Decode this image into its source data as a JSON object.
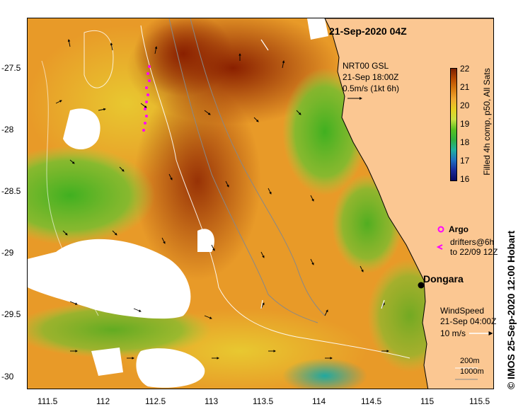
{
  "title": "21-Sep-2020 04Z",
  "currents": {
    "product": "NRT00 GSL",
    "time": "21-Sep 18:00Z",
    "scale_label": "0.5m/s (1kt 6h)"
  },
  "colorbar": {
    "label": "Filled 4h comp, p50, All Sats",
    "ticks": [
      "22",
      "21",
      "20",
      "19",
      "18",
      "17",
      "16"
    ],
    "colors": [
      "#7a1f00",
      "#b84a00",
      "#d87a10",
      "#f0a830",
      "#e6d020",
      "#c8e040",
      "#58c020",
      "#30b040",
      "#20b0a0",
      "#2070c0",
      "#1a2a9a",
      "#0a0a60"
    ]
  },
  "legend": {
    "argo_label": "Argo",
    "drifters_line1": "drifters@6h",
    "drifters_line2": "to 22/09 12Z",
    "argo_color": "#ff00ff"
  },
  "wind": {
    "label": "WindSpeed",
    "time": "21-Sep 04:00Z",
    "scale_label": "10 m/s"
  },
  "isobaths": {
    "line1": "200m",
    "line2": "1000m"
  },
  "place": {
    "name": "Dongara"
  },
  "credit": "© IMOS 25-Sep-2020 12:00 Hobart",
  "axes": {
    "lat_ticks": [
      "-27.5",
      "-28",
      "-28.5",
      "-29",
      "-29.5",
      "-30"
    ],
    "lon_ticks": [
      "111.5",
      "112",
      "112.5",
      "113",
      "113.5",
      "114",
      "114.5",
      "115",
      "115.5"
    ]
  }
}
